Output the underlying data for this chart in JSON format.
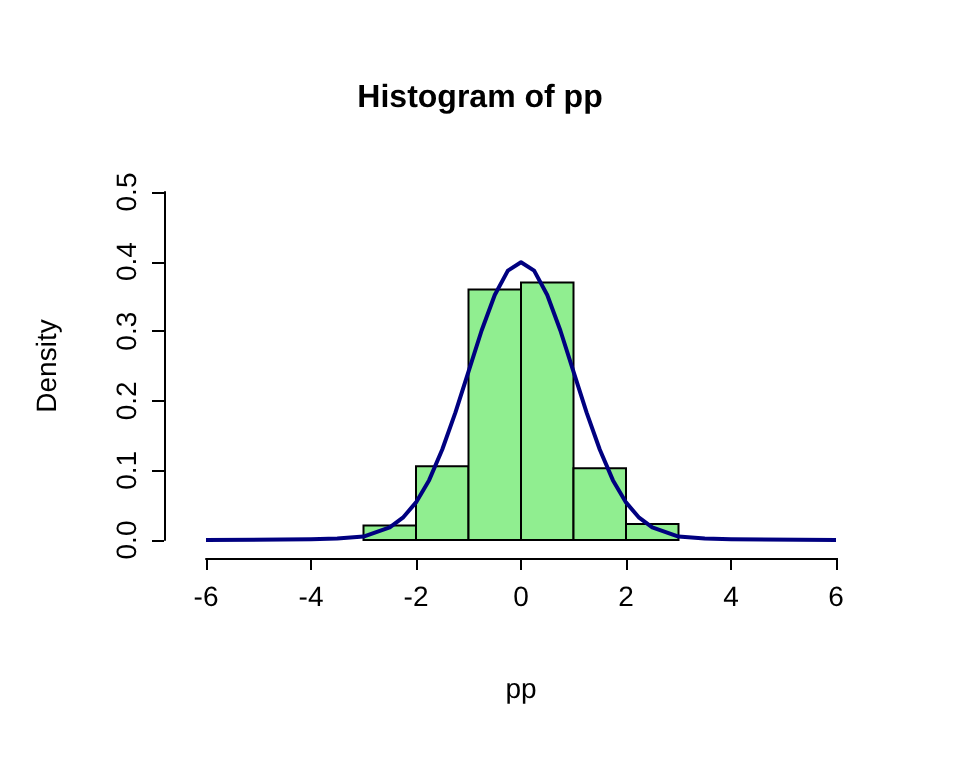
{
  "chart_data": {
    "type": "histogram",
    "title": "Histogram of pp",
    "xlabel": "pp",
    "ylabel": "Density",
    "bins": [
      -4,
      -3,
      -2,
      -1,
      0,
      1,
      2,
      3,
      4
    ],
    "values": [
      null,
      0.021,
      0.106,
      0.36,
      0.37,
      0.103,
      0.023,
      null
    ],
    "color": "#90ee90",
    "series": [
      {
        "type": "line",
        "color": "#000080",
        "x": [
          -6,
          -4,
          -3.5,
          -3,
          -2.5,
          -2.25,
          -2,
          -1.75,
          -1.5,
          -1.25,
          -1,
          -0.75,
          -0.5,
          -0.25,
          0,
          0.25,
          0.5,
          0.75,
          1,
          1.25,
          1.5,
          1.75,
          2,
          2.25,
          2.5,
          3,
          3.5,
          4,
          6
        ],
        "values": [
          0,
          0.001,
          0.002,
          0.005,
          0.018,
          0.032,
          0.054,
          0.086,
          0.13,
          0.183,
          0.242,
          0.301,
          0.352,
          0.387,
          0.399,
          0.387,
          0.352,
          0.301,
          0.242,
          0.183,
          0.13,
          0.086,
          0.054,
          0.032,
          0.018,
          0.005,
          0.002,
          0.001,
          0
        ]
      }
    ],
    "xlim": [
      -6,
      6
    ],
    "xticks": [
      -6,
      -4,
      -2,
      0,
      2,
      4,
      6
    ],
    "ylim": [
      0,
      0.5
    ],
    "yticks": [
      {
        "value": 0,
        "label": "0.0"
      },
      0.1,
      0.2,
      0.3,
      0.4,
      0.5
    ],
    "grid": false,
    "marker": "none",
    "line_style": "solid"
  }
}
